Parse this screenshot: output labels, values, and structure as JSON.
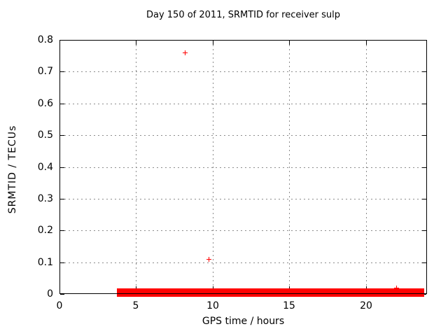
{
  "colors": {
    "marker": "#ff0000",
    "grid": "#8c8c8c",
    "border": "#000000",
    "text": "#000000",
    "background": "#ffffff"
  },
  "chart_data": {
    "type": "scatter",
    "title": "Day 150 of 2011, SRMTID for receiver sulp",
    "xlabel": "GPS time / hours",
    "ylabel": "SRMTID / TECUs",
    "xlim": [
      0,
      24
    ],
    "ylim": [
      0,
      0.8
    ],
    "xticks": [
      0,
      5,
      10,
      15,
      20
    ],
    "xtick_labels": [
      "0",
      "5",
      "10",
      "15",
      "20"
    ],
    "yticks": [
      0,
      0.1,
      0.2,
      0.3,
      0.4,
      0.5,
      0.6,
      0.7,
      0.8
    ],
    "ytick_labels": [
      "0",
      "0.1",
      "0.2",
      "0.3",
      "0.4",
      "0.5",
      "0.6",
      "0.7",
      "0.8"
    ],
    "grid": true,
    "legend": "none",
    "marker": "+",
    "series": [
      {
        "name": "SRMTID",
        "color": "#ff0000",
        "outlier_points": [
          [
            8.2,
            0.76
          ],
          [
            9.75,
            0.11
          ],
          [
            22.0,
            0.02
          ]
        ],
        "zero_band": {
          "x_start": 3.75,
          "x_end": 23.8,
          "y": 0.0,
          "description": "dense overlapping + markers at ~0 TECUs"
        }
      }
    ]
  }
}
